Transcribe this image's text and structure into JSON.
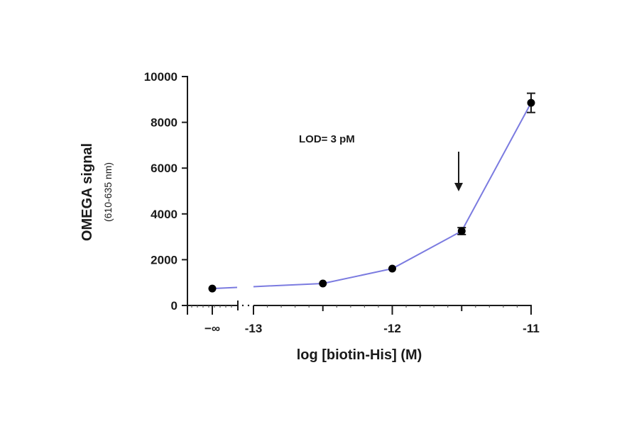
{
  "chart_data": {
    "type": "line",
    "title": "",
    "xlabel": "log [biotin-His] (M)",
    "ylabel": "OMEGA signal",
    "ylabel_sub": "(610-635 nm)",
    "xlim": [
      -13.3,
      -11
    ],
    "ylim": [
      0,
      10000
    ],
    "x_ticks": [
      {
        "value": "-inf",
        "label": "−∞"
      },
      {
        "value": -13,
        "label": "-13"
      },
      {
        "value": -12,
        "label": "-12"
      },
      {
        "value": -11,
        "label": "-11"
      }
    ],
    "y_ticks": [
      0,
      2000,
      4000,
      6000,
      8000,
      10000
    ],
    "y_tick_labels": [
      "0",
      "2000",
      "4000",
      "6000",
      "8000",
      "10000"
    ],
    "axis_break": {
      "between": [
        "-inf",
        -13
      ]
    },
    "grid": false,
    "legend": null,
    "series": [
      {
        "name": "OMEGA signal",
        "line_color": "#7b7be0",
        "marker_color": "#000000",
        "x": [
          "-inf",
          -12.5,
          -12.0,
          -11.5,
          -11.0
        ],
        "values": [
          740,
          960,
          1610,
          3250,
          8850
        ],
        "error": [
          60,
          60,
          70,
          150,
          420
        ]
      }
    ],
    "annotations": [
      {
        "type": "text",
        "text": "LOD= 3 pM",
        "x": -12.45,
        "y": 7450
      },
      {
        "type": "arrow",
        "x": -11.5,
        "y_from": 6700,
        "y_to": 4900,
        "direction": "down"
      }
    ]
  }
}
